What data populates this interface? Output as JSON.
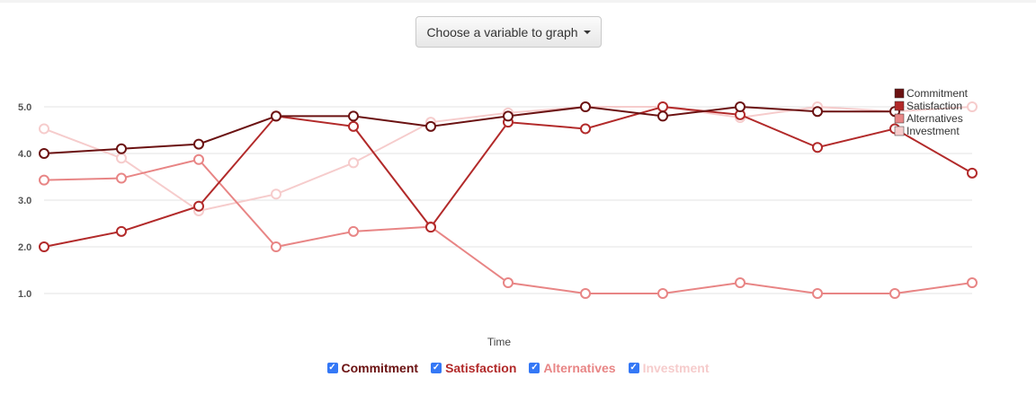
{
  "dropdown": {
    "label": "Choose a variable to graph",
    "icon": "caret-down-icon"
  },
  "chart_data": {
    "type": "line",
    "xlabel": "Time",
    "ylabel": "",
    "ylim": [
      0.5,
      5.4
    ],
    "yticks": [
      "1.0",
      "2.0",
      "3.0",
      "4.0",
      "5.0"
    ],
    "x": [
      1,
      2,
      3,
      4,
      5,
      6,
      7,
      8,
      9,
      10,
      11,
      12,
      13
    ],
    "grid": true,
    "legend_placement": "top-right",
    "series": [
      {
        "name": "Commitment",
        "color": "#6b1212",
        "values": [
          4.0,
          4.1,
          4.2,
          4.8,
          4.8,
          4.58,
          4.8,
          5.0,
          4.8,
          5.0,
          4.9,
          4.9,
          null
        ]
      },
      {
        "name": "Satisfaction",
        "color": "#b22a2a",
        "values": [
          2.0,
          2.33,
          2.87,
          4.8,
          4.58,
          2.42,
          4.67,
          4.53,
          5.0,
          4.83,
          4.13,
          4.53,
          3.58
        ]
      },
      {
        "name": "Alternatives",
        "color": "#e88585",
        "values": [
          3.43,
          3.47,
          3.87,
          2.0,
          2.33,
          2.43,
          1.23,
          1.0,
          1.0,
          1.23,
          1.0,
          1.0,
          1.23
        ]
      },
      {
        "name": "Investment",
        "color": "#f6cccc",
        "values": [
          4.53,
          3.9,
          2.77,
          3.13,
          3.8,
          4.67,
          4.87,
          5.0,
          5.0,
          4.77,
          5.0,
          4.9,
          5.0
        ]
      }
    ]
  },
  "legend_bottom": {
    "items": [
      {
        "label": "Commitment",
        "checked": true,
        "color": "#6b1212"
      },
      {
        "label": "Satisfaction",
        "checked": true,
        "color": "#b22a2a"
      },
      {
        "label": "Alternatives",
        "checked": true,
        "color": "#e88585"
      },
      {
        "label": "Investment",
        "checked": true,
        "color": "#f6cccc"
      }
    ]
  }
}
